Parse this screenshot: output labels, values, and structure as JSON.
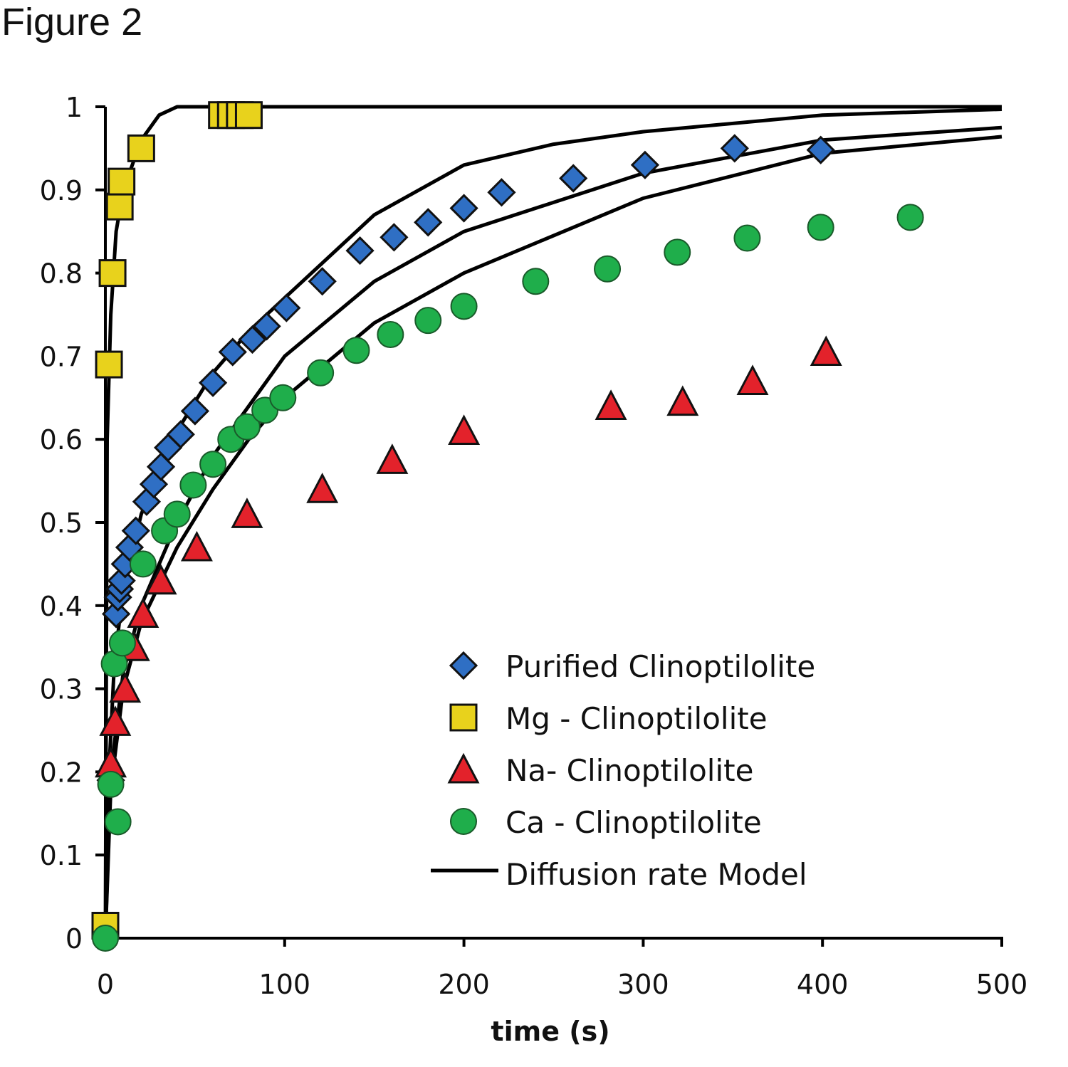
{
  "figure_label": "Figure 2",
  "chart_data": {
    "type": "scatter",
    "title": "",
    "xlabel": "time (s)",
    "ylabel": "",
    "xlim": [
      0,
      500
    ],
    "ylim": [
      0,
      1
    ],
    "xticks": [
      "0",
      "100",
      "200",
      "300",
      "400",
      "500"
    ],
    "yticks": [
      "0",
      "0.1",
      "0.2",
      "0.3",
      "0.4",
      "0.5",
      "0.6",
      "0.7",
      "0.8",
      "0.9",
      "1"
    ],
    "grid": false,
    "legend_position": "bottom-right",
    "series": [
      {
        "name": "Purified Clinoptilolite",
        "marker": "diamond",
        "color": "#2f6fc4",
        "x": [
          3,
          6,
          7,
          8,
          9,
          11,
          13.5,
          17,
          23,
          27,
          31,
          35,
          42,
          50,
          60,
          71,
          82,
          90,
          101,
          121,
          142,
          161,
          180,
          200,
          221,
          261,
          301,
          351,
          399
        ],
        "y": [
          0.19,
          0.39,
          0.41,
          0.42,
          0.43,
          0.45,
          0.47,
          0.49,
          0.525,
          0.546,
          0.567,
          0.59,
          0.606,
          0.634,
          0.668,
          0.705,
          0.72,
          0.736,
          0.758,
          0.79,
          0.827,
          0.843,
          0.861,
          0.878,
          0.897,
          0.914,
          0.93,
          0.95,
          0.948
        ]
      },
      {
        "name": "Mg - Clinoptilolite",
        "marker": "square",
        "color": "#e8d21c",
        "x": [
          0,
          2,
          4,
          8,
          9,
          20,
          65,
          70,
          75,
          80
        ],
        "y": [
          0.015,
          0.69,
          0.8,
          0.88,
          0.91,
          0.95,
          0.99,
          0.99,
          0.99,
          0.99
        ]
      },
      {
        "name": "Na- Clinoptilolite",
        "marker": "triangle",
        "color": "#e3222b",
        "x": [
          3,
          5.5,
          11,
          16,
          21,
          31,
          51,
          79,
          121,
          160,
          200,
          282,
          322,
          361,
          402
        ],
        "y": [
          0.21,
          0.26,
          0.3,
          0.35,
          0.39,
          0.43,
          0.47,
          0.51,
          0.54,
          0.575,
          0.61,
          0.64,
          0.645,
          0.67,
          0.705
        ]
      },
      {
        "name": "Ca - Clinoptilolite",
        "marker": "circle",
        "color": "#1fae4b",
        "x": [
          0,
          7,
          3,
          5,
          9.5,
          21,
          33,
          40,
          49,
          60,
          70,
          79,
          89,
          99,
          120,
          140,
          159,
          180,
          200,
          240,
          280,
          319,
          358,
          399,
          449
        ],
        "y": [
          0,
          0.14,
          0.185,
          0.33,
          0.355,
          0.45,
          0.49,
          0.51,
          0.545,
          0.57,
          0.6,
          0.615,
          0.635,
          0.65,
          0.68,
          0.707,
          0.726,
          0.743,
          0.76,
          0.79,
          0.805,
          0.825,
          0.842,
          0.855,
          0.867
        ]
      }
    ],
    "model": {
      "name": "Diffusion rate Model",
      "color": "#000000",
      "curves": [
        {
          "x": [
            0,
            1,
            3,
            6,
            10,
            20,
            30,
            40,
            500
          ],
          "y": [
            0,
            0.6,
            0.75,
            0.85,
            0.9,
            0.96,
            0.99,
            1,
            1
          ]
        },
        {
          "x": [
            0,
            2,
            5,
            10,
            20,
            40,
            60,
            80,
            100,
            150,
            200,
            250,
            300,
            400,
            500
          ],
          "y": [
            0,
            0.2,
            0.33,
            0.42,
            0.51,
            0.61,
            0.68,
            0.73,
            0.77,
            0.87,
            0.93,
            0.955,
            0.97,
            0.99,
            0.997
          ]
        },
        {
          "x": [
            0,
            3,
            10,
            20,
            40,
            60,
            80,
            100,
            150,
            200,
            300,
            400,
            500
          ],
          "y": [
            0,
            0.2,
            0.32,
            0.4,
            0.5,
            0.58,
            0.64,
            0.7,
            0.79,
            0.85,
            0.92,
            0.96,
            0.975
          ]
        },
        {
          "x": [
            0,
            3,
            10,
            20,
            40,
            60,
            80,
            100,
            150,
            200,
            300,
            400,
            500
          ],
          "y": [
            0,
            0.18,
            0.3,
            0.38,
            0.47,
            0.54,
            0.6,
            0.65,
            0.74,
            0.8,
            0.89,
            0.944,
            0.964
          ]
        }
      ]
    }
  }
}
